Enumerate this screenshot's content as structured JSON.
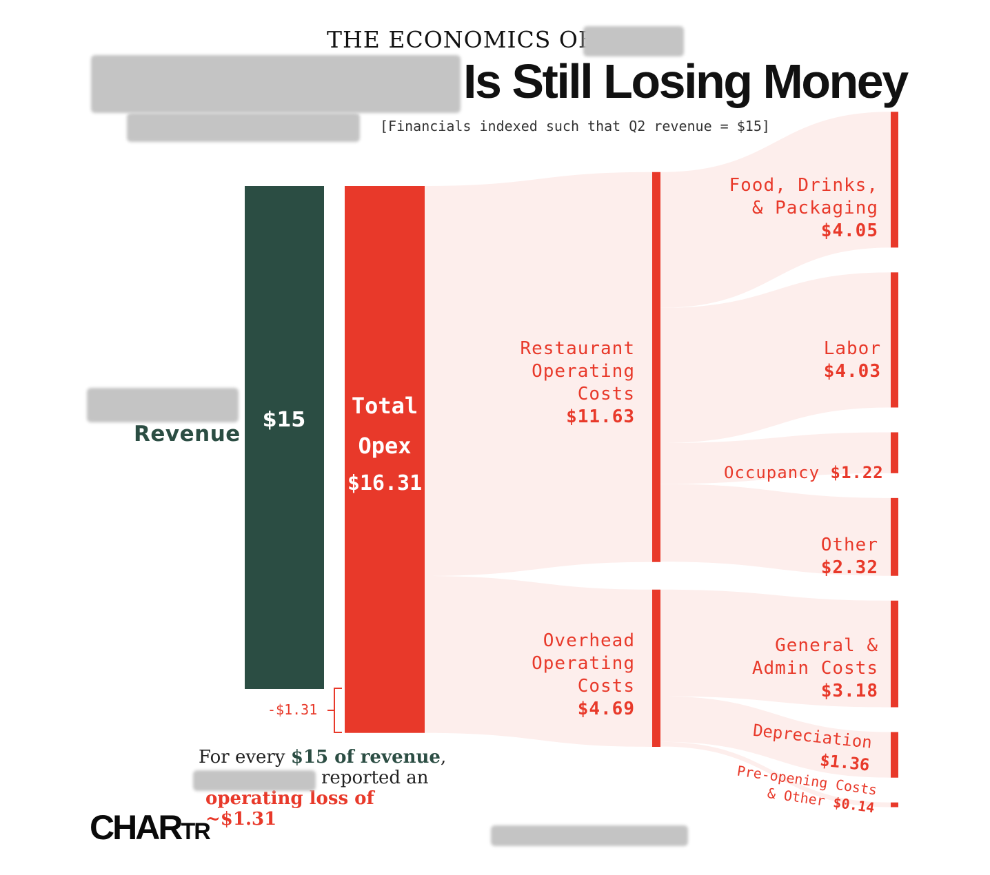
{
  "header": {
    "kicker": "THE ECONOMICS OF",
    "title": "Is Still Losing Money",
    "subtitle": "[Financials indexed such that Q2 revenue = $15]"
  },
  "chart_data": {
    "type": "sankey",
    "unit": "$",
    "nodes": [
      {
        "id": "revenue",
        "label": "Revenue",
        "value": 15,
        "value_label": "$15",
        "color": "#2b4d43"
      },
      {
        "id": "total_opex",
        "label": "Total Opex",
        "value": 16.31,
        "value_label": "$16.31",
        "color": "#e8392a"
      },
      {
        "id": "restaurant_operating_costs",
        "label": "Restaurant Operating Costs",
        "value": 11.63,
        "value_label": "$11.63",
        "color": "#e8392a"
      },
      {
        "id": "overhead_operating_costs",
        "label": "Overhead Operating Costs",
        "value": 4.69,
        "value_label": "$4.69",
        "color": "#e8392a"
      },
      {
        "id": "food_drinks_packaging",
        "label": "Food, Drinks, & Packaging",
        "value": 4.05,
        "value_label": "$4.05",
        "color": "#e8392a"
      },
      {
        "id": "labor",
        "label": "Labor",
        "value": 4.03,
        "value_label": "$4.03",
        "color": "#e8392a"
      },
      {
        "id": "occupancy",
        "label": "Occupancy",
        "value": 1.22,
        "value_label": "$1.22",
        "color": "#e8392a"
      },
      {
        "id": "other",
        "label": "Other",
        "value": 2.32,
        "value_label": "$2.32",
        "color": "#e8392a"
      },
      {
        "id": "general_admin",
        "label": "General & Admin Costs",
        "value": 3.18,
        "value_label": "$3.18",
        "color": "#e8392a"
      },
      {
        "id": "depreciation",
        "label": "Depreciation",
        "value": 1.36,
        "value_label": "$1.36",
        "color": "#e8392a"
      },
      {
        "id": "preopening_other",
        "label": "Pre-opening Costs & Other",
        "value": 0.14,
        "value_label": "$0.14",
        "color": "#e8392a"
      }
    ],
    "links": [
      {
        "source": "total_opex",
        "target": "restaurant_operating_costs",
        "value": 11.63
      },
      {
        "source": "total_opex",
        "target": "overhead_operating_costs",
        "value": 4.69
      },
      {
        "source": "restaurant_operating_costs",
        "target": "food_drinks_packaging",
        "value": 4.05
      },
      {
        "source": "restaurant_operating_costs",
        "target": "labor",
        "value": 4.03
      },
      {
        "source": "restaurant_operating_costs",
        "target": "occupancy",
        "value": 1.22
      },
      {
        "source": "restaurant_operating_costs",
        "target": "other",
        "value": 2.32
      },
      {
        "source": "overhead_operating_costs",
        "target": "general_admin",
        "value": 3.18
      },
      {
        "source": "overhead_operating_costs",
        "target": "depreciation",
        "value": 1.36
      },
      {
        "source": "overhead_operating_costs",
        "target": "preopening_other",
        "value": 0.14
      }
    ],
    "operating_loss": {
      "value": -1.31,
      "label": "-$1.31"
    },
    "colors": {
      "revenue": "#2b4d43",
      "cost": "#e8392a",
      "flow": "#fdeeec"
    }
  },
  "labels": {
    "revenue": "Revenue",
    "revenue_value": "$15",
    "opex_line1": "Total",
    "opex_line2": "Opex",
    "opex_value": "$16.31",
    "roc_line1": "Restaurant",
    "roc_line2": "Operating",
    "roc_line3": "Costs",
    "roc_value": "$11.63",
    "ooc_line1": "Overhead",
    "ooc_line2": "Operating",
    "ooc_line3": "Costs",
    "ooc_value": "$4.69",
    "food_line1": "Food, Drinks,",
    "food_line2": "& Packaging",
    "food_value": "$4.05",
    "labor_line1": "Labor",
    "labor_value": "$4.03",
    "occupancy_line1": "Occupancy",
    "occupancy_value": "$1.22",
    "other_line1": "Other",
    "other_value": "$2.32",
    "ga_line1": "General &",
    "ga_line2": "Admin Costs",
    "ga_value": "$3.18",
    "dep_line1": "Depreciation",
    "dep_value": "$1.36",
    "pre_line1": "Pre-opening Costs",
    "pre_line2": "& Other",
    "pre_value": "$0.14",
    "loss": "-$1.31"
  },
  "footnote": {
    "part1": "For every ",
    "part2": "$15 of revenue",
    "part3": ",",
    "part4": " reported an",
    "part5": "operating loss of ~$1.31"
  },
  "brand": {
    "logo_main": "CHAR",
    "logo_small": "TR"
  }
}
